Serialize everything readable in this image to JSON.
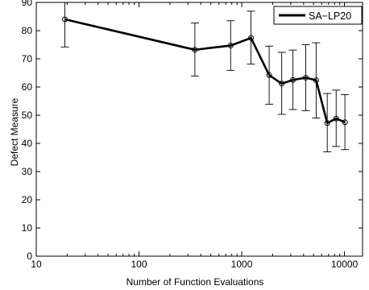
{
  "chart_data": {
    "type": "line",
    "title": "",
    "xlabel": "Number of Function Evaluations",
    "ylabel": "Defect Measure",
    "xscale": "log",
    "xlim": [
      10,
      15000
    ],
    "ylim": [
      0,
      90
    ],
    "x_ticks": [
      10,
      100,
      1000,
      10000
    ],
    "x_tick_labels": [
      "10",
      "100",
      "1000",
      "10000"
    ],
    "y_ticks": [
      0,
      10,
      20,
      30,
      40,
      50,
      60,
      70,
      80,
      90
    ],
    "y_tick_labels": [
      "0",
      "10",
      "20",
      "30",
      "40",
      "50",
      "60",
      "70",
      "80",
      "90"
    ],
    "grid": false,
    "legend": {
      "position": "top-right",
      "entries": [
        "SA−LP20"
      ]
    },
    "series": [
      {
        "name": "SA−LP20",
        "color": "#000000",
        "marker": "circle",
        "x": [
          19,
          350,
          780,
          1230,
          1850,
          2450,
          3150,
          4200,
          5300,
          6800,
          8300,
          10100
        ],
        "y": [
          84,
          73.2,
          74.7,
          77.4,
          64.2,
          61.2,
          62.5,
          63.3,
          62.4,
          47.2,
          48.8,
          47.5
        ],
        "err_low": [
          74.2,
          63.9,
          65.9,
          68.1,
          53.9,
          50.3,
          52.0,
          51.6,
          49.0,
          37.0,
          38.9,
          37.8
        ],
        "err_high": [
          90,
          82.7,
          83.5,
          86.9,
          74.5,
          72.3,
          73.1,
          75.0,
          75.7,
          57.7,
          58.9,
          57.3
        ]
      }
    ]
  }
}
